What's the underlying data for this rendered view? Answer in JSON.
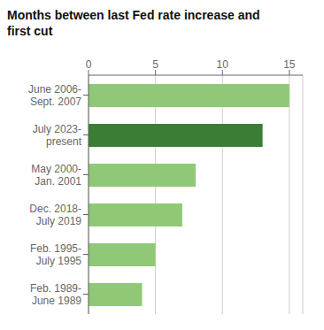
{
  "chart_data": {
    "type": "bar",
    "orientation": "horizontal",
    "title": "Months between last Fed rate increase and\nfirst cut",
    "categories": [
      "June 2006-\nSept. 2007",
      "July 2023-\npresent",
      "May 2000-\nJan. 2001",
      "Dec. 2018-\nJuly 2019",
      "Feb. 1995-\nJuly 1995",
      "Feb. 1989-\nJune 1989"
    ],
    "values": [
      15,
      13,
      8,
      7,
      5,
      4
    ],
    "colors": [
      "#90c878",
      "#3a7d34",
      "#90c878",
      "#90c878",
      "#90c878",
      "#90c878"
    ],
    "xlim": [
      0,
      16
    ],
    "xticks": [
      0,
      5,
      10,
      15
    ],
    "grid": true
  }
}
